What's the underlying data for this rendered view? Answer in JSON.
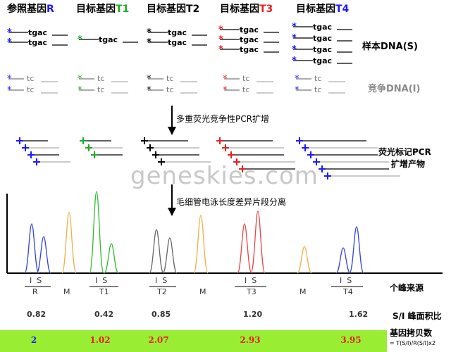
{
  "headers": [
    {
      "prefix": "参照基因",
      "suffix": "R",
      "color": "#1a1aff"
    },
    {
      "prefix": "目标基因",
      "suffix": "T1",
      "color": "#22aa22"
    },
    {
      "prefix": "目标基因",
      "suffix": "T2",
      "color": "#000000"
    },
    {
      "prefix": "目标基因",
      "suffix": "T3",
      "color": "#e62020"
    },
    {
      "prefix": "目标基因",
      "suffix": "T4",
      "color": "#1a1aff"
    }
  ],
  "seq": {
    "sample_label": "tgac",
    "competitor_label": "tc"
  },
  "labels": {
    "sample_dna": "样本DNA(S)",
    "competitor_dna": "竞争DNA(I)",
    "step1": "多重荧光竞争性PCR扩增",
    "fluor_products_1": "荧光标记PCR",
    "fluor_products_2": "扩增产物",
    "step2": "毛细管电泳长度差异片段分离",
    "peak_source": "个峰来源",
    "si_ratio": "S/I 峰面积比",
    "copy_number": "基因拷贝数",
    "formula": "= T(S/I)/R(S/I)x2"
  },
  "groups": [
    {
      "I": "I",
      "S": "S",
      "name": "R"
    },
    {
      "name": "M"
    },
    {
      "I": "I",
      "S": "S",
      "name": "T1"
    },
    {
      "I": "I",
      "S": "S",
      "name": "T2"
    },
    {
      "name": "M"
    },
    {
      "I": "I",
      "S": "S",
      "name": "T3"
    },
    {
      "name": "M"
    },
    {
      "I": "I",
      "S": "S",
      "name": "T4"
    }
  ],
  "ratios": [
    "0.82",
    "0.42",
    "0.85",
    "1.20",
    "1.62"
  ],
  "copy_numbers": [
    {
      "value": "2",
      "color": "#1a1aff"
    },
    {
      "value": "1.02",
      "color": "#e62020"
    },
    {
      "value": "2.07",
      "color": "#e62020"
    },
    {
      "value": "2.93",
      "color": "#e62020"
    },
    {
      "value": "3.95",
      "color": "#e62020"
    }
  ],
  "watermark": "geneskies.com"
}
